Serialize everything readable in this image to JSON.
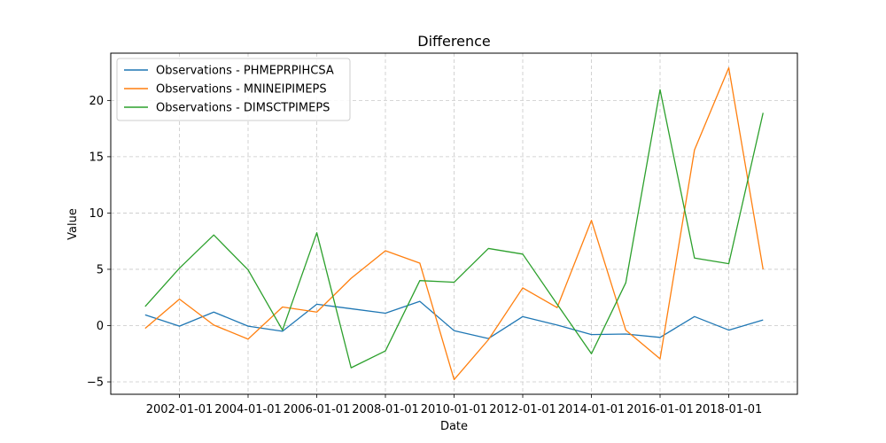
{
  "chart_data": {
    "type": "line",
    "title": "Difference",
    "xlabel": "Date",
    "ylabel": "Value",
    "x": [
      "2001-01-01",
      "2002-01-01",
      "2003-01-01",
      "2004-01-01",
      "2005-01-01",
      "2006-01-01",
      "2007-01-01",
      "2008-01-01",
      "2009-01-01",
      "2010-01-01",
      "2011-01-01",
      "2012-01-01",
      "2013-01-01",
      "2014-01-01",
      "2015-01-01",
      "2016-01-01",
      "2017-01-01",
      "2018-01-01",
      "2019-01-01"
    ],
    "x_ticks": [
      "2002-01-01",
      "2004-01-01",
      "2006-01-01",
      "2008-01-01",
      "2010-01-01",
      "2012-01-01",
      "2014-01-01",
      "2016-01-01",
      "2018-01-01"
    ],
    "xlim": [
      "2000-01-01",
      "2020-01-01"
    ],
    "y_ticks": [
      -5,
      0,
      5,
      10,
      15,
      20
    ],
    "ylim": [
      -6.1,
      24.2
    ],
    "grid": true,
    "legend_position": "top-left",
    "series": [
      {
        "name": "Observations - PHMEPRPIHCSA",
        "color": "#1f77b4",
        "values": [
          0.95,
          -0.05,
          1.2,
          -0.05,
          -0.5,
          1.9,
          1.5,
          1.1,
          2.15,
          -0.45,
          -1.15,
          0.8,
          0.05,
          -0.8,
          -0.75,
          -1.05,
          0.8,
          -0.4,
          0.5
        ]
      },
      {
        "name": "Observations - MNINEIPIMEPS",
        "color": "#ff7f0e",
        "values": [
          -0.25,
          2.35,
          0.05,
          -1.2,
          1.65,
          1.2,
          4.2,
          6.65,
          5.55,
          -4.8,
          -1.25,
          3.35,
          1.6,
          9.35,
          -0.4,
          -2.95,
          15.6,
          22.9,
          5.0
        ]
      },
      {
        "name": "Observations - DIMSCTPIMEPS",
        "color": "#2ca02c",
        "values": [
          1.7,
          5.1,
          8.05,
          4.95,
          -0.4,
          8.25,
          -3.75,
          -2.25,
          4.0,
          3.85,
          6.85,
          6.35,
          1.9,
          -2.5,
          3.8,
          20.95,
          6.0,
          5.5,
          18.9
        ]
      }
    ]
  }
}
